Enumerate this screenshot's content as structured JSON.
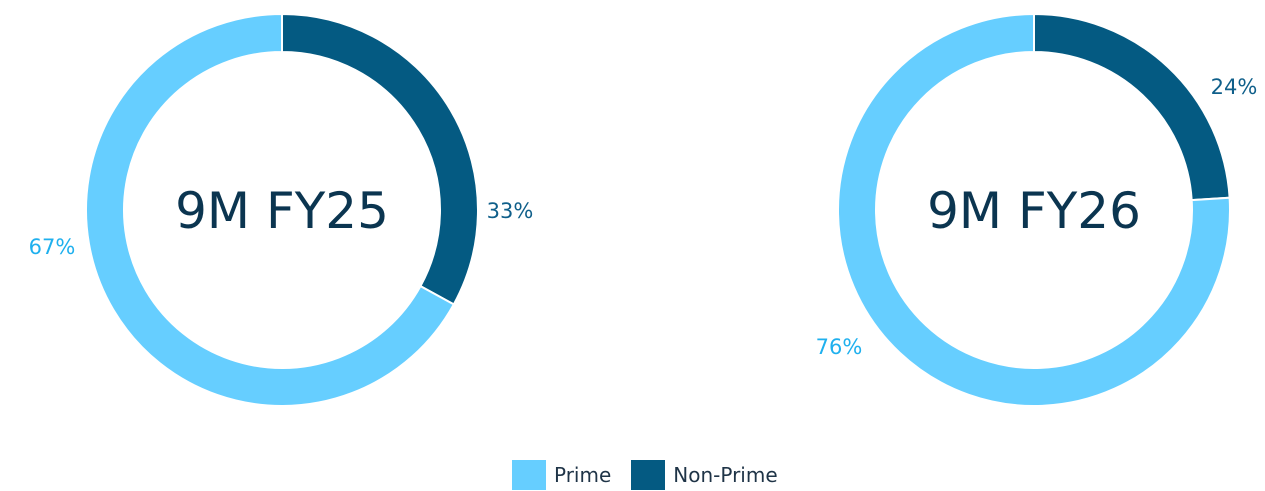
{
  "colors": {
    "Prime": "#66ceff",
    "Non-Prime": "#045a82"
  },
  "legend": [
    {
      "label": "Prime",
      "color": "#66ceff"
    },
    {
      "label": "Non-Prime",
      "color": "#045a82"
    }
  ],
  "chart_data": [
    {
      "type": "pie",
      "title": "9M FY25",
      "categories": [
        "Prime",
        "Non-Prime"
      ],
      "values": [
        67,
        33
      ],
      "labels": [
        "67%",
        "33%"
      ]
    },
    {
      "type": "pie",
      "title": "9M FY26",
      "categories": [
        "Prime",
        "Non-Prime"
      ],
      "values": [
        76,
        24
      ],
      "labels": [
        "76%",
        "24%"
      ]
    }
  ]
}
